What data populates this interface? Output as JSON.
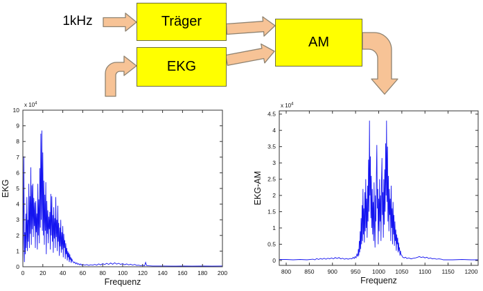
{
  "diagram": {
    "input_label": "1kHz",
    "boxes": [
      {
        "id": "traeger",
        "label": "Träger"
      },
      {
        "id": "ekg",
        "label": "EKG"
      },
      {
        "id": "am",
        "label": "AM"
      }
    ]
  },
  "colors": {
    "box_fill": "#ffff00",
    "box_stroke": "#6e6e3c",
    "arrow_fill": "#f7c396",
    "arrow_stroke": "#8e8270",
    "series": "#1414f0",
    "axis": "#333333"
  },
  "chart_data": [
    {
      "type": "line",
      "title": "",
      "xlabel": "Frequenz",
      "ylabel": "EKG",
      "exponent": {
        "base": "x 10",
        "power": "4"
      },
      "unit_scale": 10000,
      "xlim": [
        0,
        200
      ],
      "ylim": [
        0,
        10
      ],
      "grid": false,
      "legend": null,
      "xticks": [
        0,
        20,
        40,
        60,
        80,
        100,
        120,
        140,
        160,
        180,
        200
      ],
      "xtick_labels": [
        "0",
        "20",
        "40",
        "60",
        "80",
        "100",
        "120",
        "140",
        "160",
        "180",
        "200"
      ],
      "yticks": [
        0,
        1,
        2,
        3,
        4,
        5,
        6,
        7,
        8,
        9,
        10
      ],
      "ytick_labels": [
        "0",
        "1",
        "2",
        "3",
        "4",
        "5",
        "6",
        "7",
        "8",
        "9",
        "10"
      ],
      "points": [
        [
          0,
          0.1
        ],
        [
          0.5,
          2.0
        ],
        [
          1,
          7.05
        ],
        [
          1.5,
          0.3
        ],
        [
          2,
          2.2
        ],
        [
          2.5,
          0.8
        ],
        [
          3,
          3.4
        ],
        [
          3.5,
          1.2
        ],
        [
          4,
          4.45
        ],
        [
          4.5,
          1.0
        ],
        [
          5,
          3.0
        ],
        [
          5.5,
          1.6
        ],
        [
          6,
          5.3
        ],
        [
          6.5,
          1.2
        ],
        [
          7,
          4.5
        ],
        [
          7.5,
          2.1
        ],
        [
          8,
          6.35
        ],
        [
          8.5,
          1.4
        ],
        [
          9,
          5.2
        ],
        [
          9.5,
          2.4
        ],
        [
          10,
          5.3
        ],
        [
          10.5,
          1.9
        ],
        [
          11,
          4.4
        ],
        [
          11.5,
          2.6
        ],
        [
          12,
          4.1
        ],
        [
          12.5,
          1.2
        ],
        [
          13,
          4.2
        ],
        [
          13.5,
          2.2
        ],
        [
          14,
          3.4
        ],
        [
          14.5,
          1.1
        ],
        [
          15,
          5.3
        ],
        [
          15.5,
          2.0
        ],
        [
          16,
          4.3
        ],
        [
          16.5,
          1.5
        ],
        [
          17,
          6.3
        ],
        [
          17.5,
          2.5
        ],
        [
          18,
          8.5
        ],
        [
          18.5,
          3.0
        ],
        [
          19,
          8.7
        ],
        [
          19.5,
          2.3
        ],
        [
          20,
          7.3
        ],
        [
          20.5,
          2.0
        ],
        [
          21,
          5.5
        ],
        [
          21.5,
          1.4
        ],
        [
          22,
          4.6
        ],
        [
          22.5,
          2.3
        ],
        [
          23,
          5.4
        ],
        [
          23.5,
          0.8
        ],
        [
          24,
          4.2
        ],
        [
          24.5,
          2.1
        ],
        [
          25,
          3.6
        ],
        [
          25.5,
          1.5
        ],
        [
          26,
          3.2
        ],
        [
          26.5,
          2.4
        ],
        [
          27,
          3.5
        ],
        [
          27.5,
          1.1
        ],
        [
          28,
          4.65
        ],
        [
          28.5,
          2.0
        ],
        [
          29,
          4.5
        ],
        [
          29.5,
          1.6
        ],
        [
          30,
          3.3
        ],
        [
          30.5,
          0.9
        ],
        [
          31,
          3.8
        ],
        [
          31.5,
          1.8
        ],
        [
          32,
          3.1
        ],
        [
          32.5,
          1.2
        ],
        [
          33,
          4.45
        ],
        [
          33.5,
          1.9
        ],
        [
          34,
          3.0
        ],
        [
          34.5,
          1.0
        ],
        [
          35,
          3.9
        ],
        [
          35.5,
          1.6
        ],
        [
          36,
          2.8
        ],
        [
          36.5,
          0.7
        ],
        [
          37,
          2.5
        ],
        [
          37.5,
          1.3
        ],
        [
          38,
          3.0
        ],
        [
          38.5,
          0.9
        ],
        [
          39,
          2.2
        ],
        [
          39.5,
          1.1
        ],
        [
          40,
          2.6
        ],
        [
          40.5,
          0.6
        ],
        [
          41,
          2.1
        ],
        [
          41.5,
          1.2
        ],
        [
          42,
          1.7
        ],
        [
          42.5,
          0.5
        ],
        [
          43,
          1.5
        ],
        [
          43.5,
          0.8
        ],
        [
          44,
          1.2
        ],
        [
          44.5,
          0.4
        ],
        [
          45,
          1.0
        ],
        [
          45.5,
          0.6
        ],
        [
          46,
          0.9
        ],
        [
          46.5,
          0.3
        ],
        [
          47,
          0.8
        ],
        [
          47.5,
          0.45
        ],
        [
          48,
          0.6
        ],
        [
          48.5,
          0.25
        ],
        [
          49,
          0.5
        ],
        [
          50,
          0.35
        ],
        [
          51,
          0.25
        ],
        [
          52,
          0.3
        ],
        [
          53,
          0.18
        ],
        [
          54,
          0.25
        ],
        [
          55,
          0.15
        ],
        [
          56,
          0.2
        ],
        [
          57,
          0.12
        ],
        [
          58,
          0.18
        ],
        [
          59,
          0.1
        ],
        [
          60,
          0.15
        ],
        [
          62,
          0.1
        ],
        [
          64,
          0.14
        ],
        [
          66,
          0.09
        ],
        [
          68,
          0.13
        ],
        [
          70,
          0.1
        ],
        [
          72,
          0.15
        ],
        [
          74,
          0.1
        ],
        [
          76,
          0.18
        ],
        [
          78,
          0.12
        ],
        [
          80,
          0.2
        ],
        [
          82,
          0.14
        ],
        [
          84,
          0.22
        ],
        [
          86,
          0.15
        ],
        [
          88,
          0.24
        ],
        [
          90,
          0.16
        ],
        [
          92,
          0.25
        ],
        [
          94,
          0.17
        ],
        [
          96,
          0.22
        ],
        [
          98,
          0.15
        ],
        [
          100,
          0.2
        ],
        [
          102,
          0.13
        ],
        [
          104,
          0.18
        ],
        [
          106,
          0.12
        ],
        [
          108,
          0.16
        ],
        [
          110,
          0.1
        ],
        [
          112,
          0.15
        ],
        [
          114,
          0.09
        ],
        [
          116,
          0.1
        ],
        [
          118,
          0.07
        ],
        [
          120,
          0.09
        ],
        [
          122,
          0.06
        ],
        [
          123,
          0.28
        ],
        [
          124,
          0.08
        ],
        [
          126,
          0.06
        ],
        [
          130,
          0.05
        ],
        [
          140,
          0.05
        ],
        [
          150,
          0.04
        ],
        [
          160,
          0.05
        ],
        [
          170,
          0.04
        ],
        [
          180,
          0.05
        ],
        [
          190,
          0.04
        ],
        [
          200,
          0.05
        ]
      ]
    },
    {
      "type": "line",
      "title": "",
      "xlabel": "Frequenz",
      "ylabel": "EKG-AM",
      "exponent": {
        "base": "x 10",
        "power": "4"
      },
      "unit_scale": 10000,
      "xlim": [
        785,
        1215
      ],
      "ylim": [
        -0.15,
        4.6
      ],
      "grid": false,
      "legend": null,
      "xticks": [
        800,
        850,
        900,
        950,
        1000,
        1050,
        1100,
        1150,
        1200
      ],
      "xtick_labels": [
        "800",
        "850",
        "900",
        "950",
        "1000",
        "1050",
        "1100",
        "1150",
        "1200"
      ],
      "yticks": [
        0,
        0.5,
        1,
        1.5,
        2,
        2.5,
        3,
        3.5,
        4,
        4.5
      ],
      "ytick_labels": [
        "0",
        "0.5",
        "1",
        "1.5",
        "2",
        "2.5",
        "3",
        "3.5",
        "4",
        "4.5"
      ],
      "points": [
        [
          785,
          0.03
        ],
        [
          800,
          0.03
        ],
        [
          815,
          0.02
        ],
        [
          830,
          0.03
        ],
        [
          845,
          0.02
        ],
        [
          858,
          0.04
        ],
        [
          862,
          0.02
        ],
        [
          866,
          0.06
        ],
        [
          870,
          0.03
        ],
        [
          874,
          0.06
        ],
        [
          878,
          0.04
        ],
        [
          882,
          0.07
        ],
        [
          886,
          0.04
        ],
        [
          890,
          0.07
        ],
        [
          894,
          0.05
        ],
        [
          898,
          0.08
        ],
        [
          902,
          0.05
        ],
        [
          906,
          0.09
        ],
        [
          910,
          0.06
        ],
        [
          914,
          0.09
        ],
        [
          918,
          0.05
        ],
        [
          922,
          0.07
        ],
        [
          926,
          0.04
        ],
        [
          930,
          0.06
        ],
        [
          934,
          0.04
        ],
        [
          938,
          0.06
        ],
        [
          942,
          0.05
        ],
        [
          945,
          0.1
        ],
        [
          947,
          0.06
        ],
        [
          949,
          0.12
        ],
        [
          951,
          0.08
        ],
        [
          953,
          0.2
        ],
        [
          955,
          0.12
        ],
        [
          956,
          0.35
        ],
        [
          957,
          0.15
        ],
        [
          958,
          0.6
        ],
        [
          959,
          0.25
        ],
        [
          960,
          0.9
        ],
        [
          961,
          0.35
        ],
        [
          962,
          1.3
        ],
        [
          963,
          0.5
        ],
        [
          964,
          1.7
        ],
        [
          965,
          0.6
        ],
        [
          966,
          2.2
        ],
        [
          967,
          0.8
        ],
        [
          968,
          1.6
        ],
        [
          969,
          0.55
        ],
        [
          970,
          2.1
        ],
        [
          971,
          0.9
        ],
        [
          972,
          2.5
        ],
        [
          973,
          1.0
        ],
        [
          974,
          1.9
        ],
        [
          975,
          0.7
        ],
        [
          976,
          2.3
        ],
        [
          977,
          1.2
        ],
        [
          978,
          3.1
        ],
        [
          979,
          1.5
        ],
        [
          980,
          4.3
        ],
        [
          981,
          2.0
        ],
        [
          982,
          3.2
        ],
        [
          983,
          1.3
        ],
        [
          984,
          2.6
        ],
        [
          985,
          1.0
        ],
        [
          986,
          2.2
        ],
        [
          987,
          0.8
        ],
        [
          988,
          1.8
        ],
        [
          989,
          0.6
        ],
        [
          990,
          2.4
        ],
        [
          991,
          1.1
        ],
        [
          992,
          0.4
        ],
        [
          993,
          2.0
        ],
        [
          994,
          1.2
        ],
        [
          995,
          2.7
        ],
        [
          996,
          3.55
        ],
        [
          997,
          1.6
        ],
        [
          998,
          2.2
        ],
        [
          999,
          0.5
        ],
        [
          1000,
          1.9
        ],
        [
          1001,
          0.9
        ],
        [
          1002,
          2.5
        ],
        [
          1003,
          1.2
        ],
        [
          1004,
          2.0
        ],
        [
          1005,
          0.6
        ],
        [
          1006,
          2.4
        ],
        [
          1007,
          3.15
        ],
        [
          1008,
          1.4
        ],
        [
          1009,
          2.1
        ],
        [
          1010,
          0.7
        ],
        [
          1011,
          2.5
        ],
        [
          1012,
          1.1
        ],
        [
          1013,
          2.8
        ],
        [
          1014,
          1.5
        ],
        [
          1015,
          3.6
        ],
        [
          1016,
          2.0
        ],
        [
          1017,
          4.3
        ],
        [
          1018,
          1.8
        ],
        [
          1019,
          3.5
        ],
        [
          1020,
          1.2
        ],
        [
          1021,
          2.6
        ],
        [
          1022,
          0.9
        ],
        [
          1023,
          2.2
        ],
        [
          1024,
          1.4
        ],
        [
          1025,
          1.9
        ],
        [
          1026,
          0.6
        ],
        [
          1027,
          2.3
        ],
        [
          1028,
          1.0
        ],
        [
          1029,
          1.6
        ],
        [
          1030,
          0.5
        ],
        [
          1031,
          1.8
        ],
        [
          1032,
          0.8
        ],
        [
          1033,
          1.4
        ],
        [
          1034,
          0.45
        ],
        [
          1035,
          1.2
        ],
        [
          1036,
          0.6
        ],
        [
          1037,
          0.95
        ],
        [
          1038,
          0.3
        ],
        [
          1039,
          0.8
        ],
        [
          1040,
          0.5
        ],
        [
          1041,
          0.7
        ],
        [
          1042,
          0.25
        ],
        [
          1043,
          0.55
        ],
        [
          1044,
          0.3
        ],
        [
          1045,
          0.4
        ],
        [
          1046,
          0.15
        ],
        [
          1047,
          0.3
        ],
        [
          1048,
          0.2
        ],
        [
          1050,
          0.15
        ],
        [
          1052,
          0.1
        ],
        [
          1055,
          0.08
        ],
        [
          1058,
          0.1
        ],
        [
          1061,
          0.06
        ],
        [
          1065,
          0.08
        ],
        [
          1070,
          0.05
        ],
        [
          1075,
          0.07
        ],
        [
          1080,
          0.08
        ],
        [
          1084,
          0.1
        ],
        [
          1088,
          0.12
        ],
        [
          1092,
          0.09
        ],
        [
          1096,
          0.11
        ],
        [
          1100,
          0.08
        ],
        [
          1104,
          0.1
        ],
        [
          1108,
          0.06
        ],
        [
          1112,
          0.08
        ],
        [
          1116,
          0.05
        ],
        [
          1120,
          0.06
        ],
        [
          1125,
          0.04
        ],
        [
          1130,
          0.05
        ],
        [
          1135,
          0.04
        ],
        [
          1140,
          0.02
        ],
        [
          1160,
          0.02
        ],
        [
          1180,
          0.03
        ],
        [
          1200,
          0.02
        ],
        [
          1215,
          0.02
        ]
      ]
    }
  ]
}
